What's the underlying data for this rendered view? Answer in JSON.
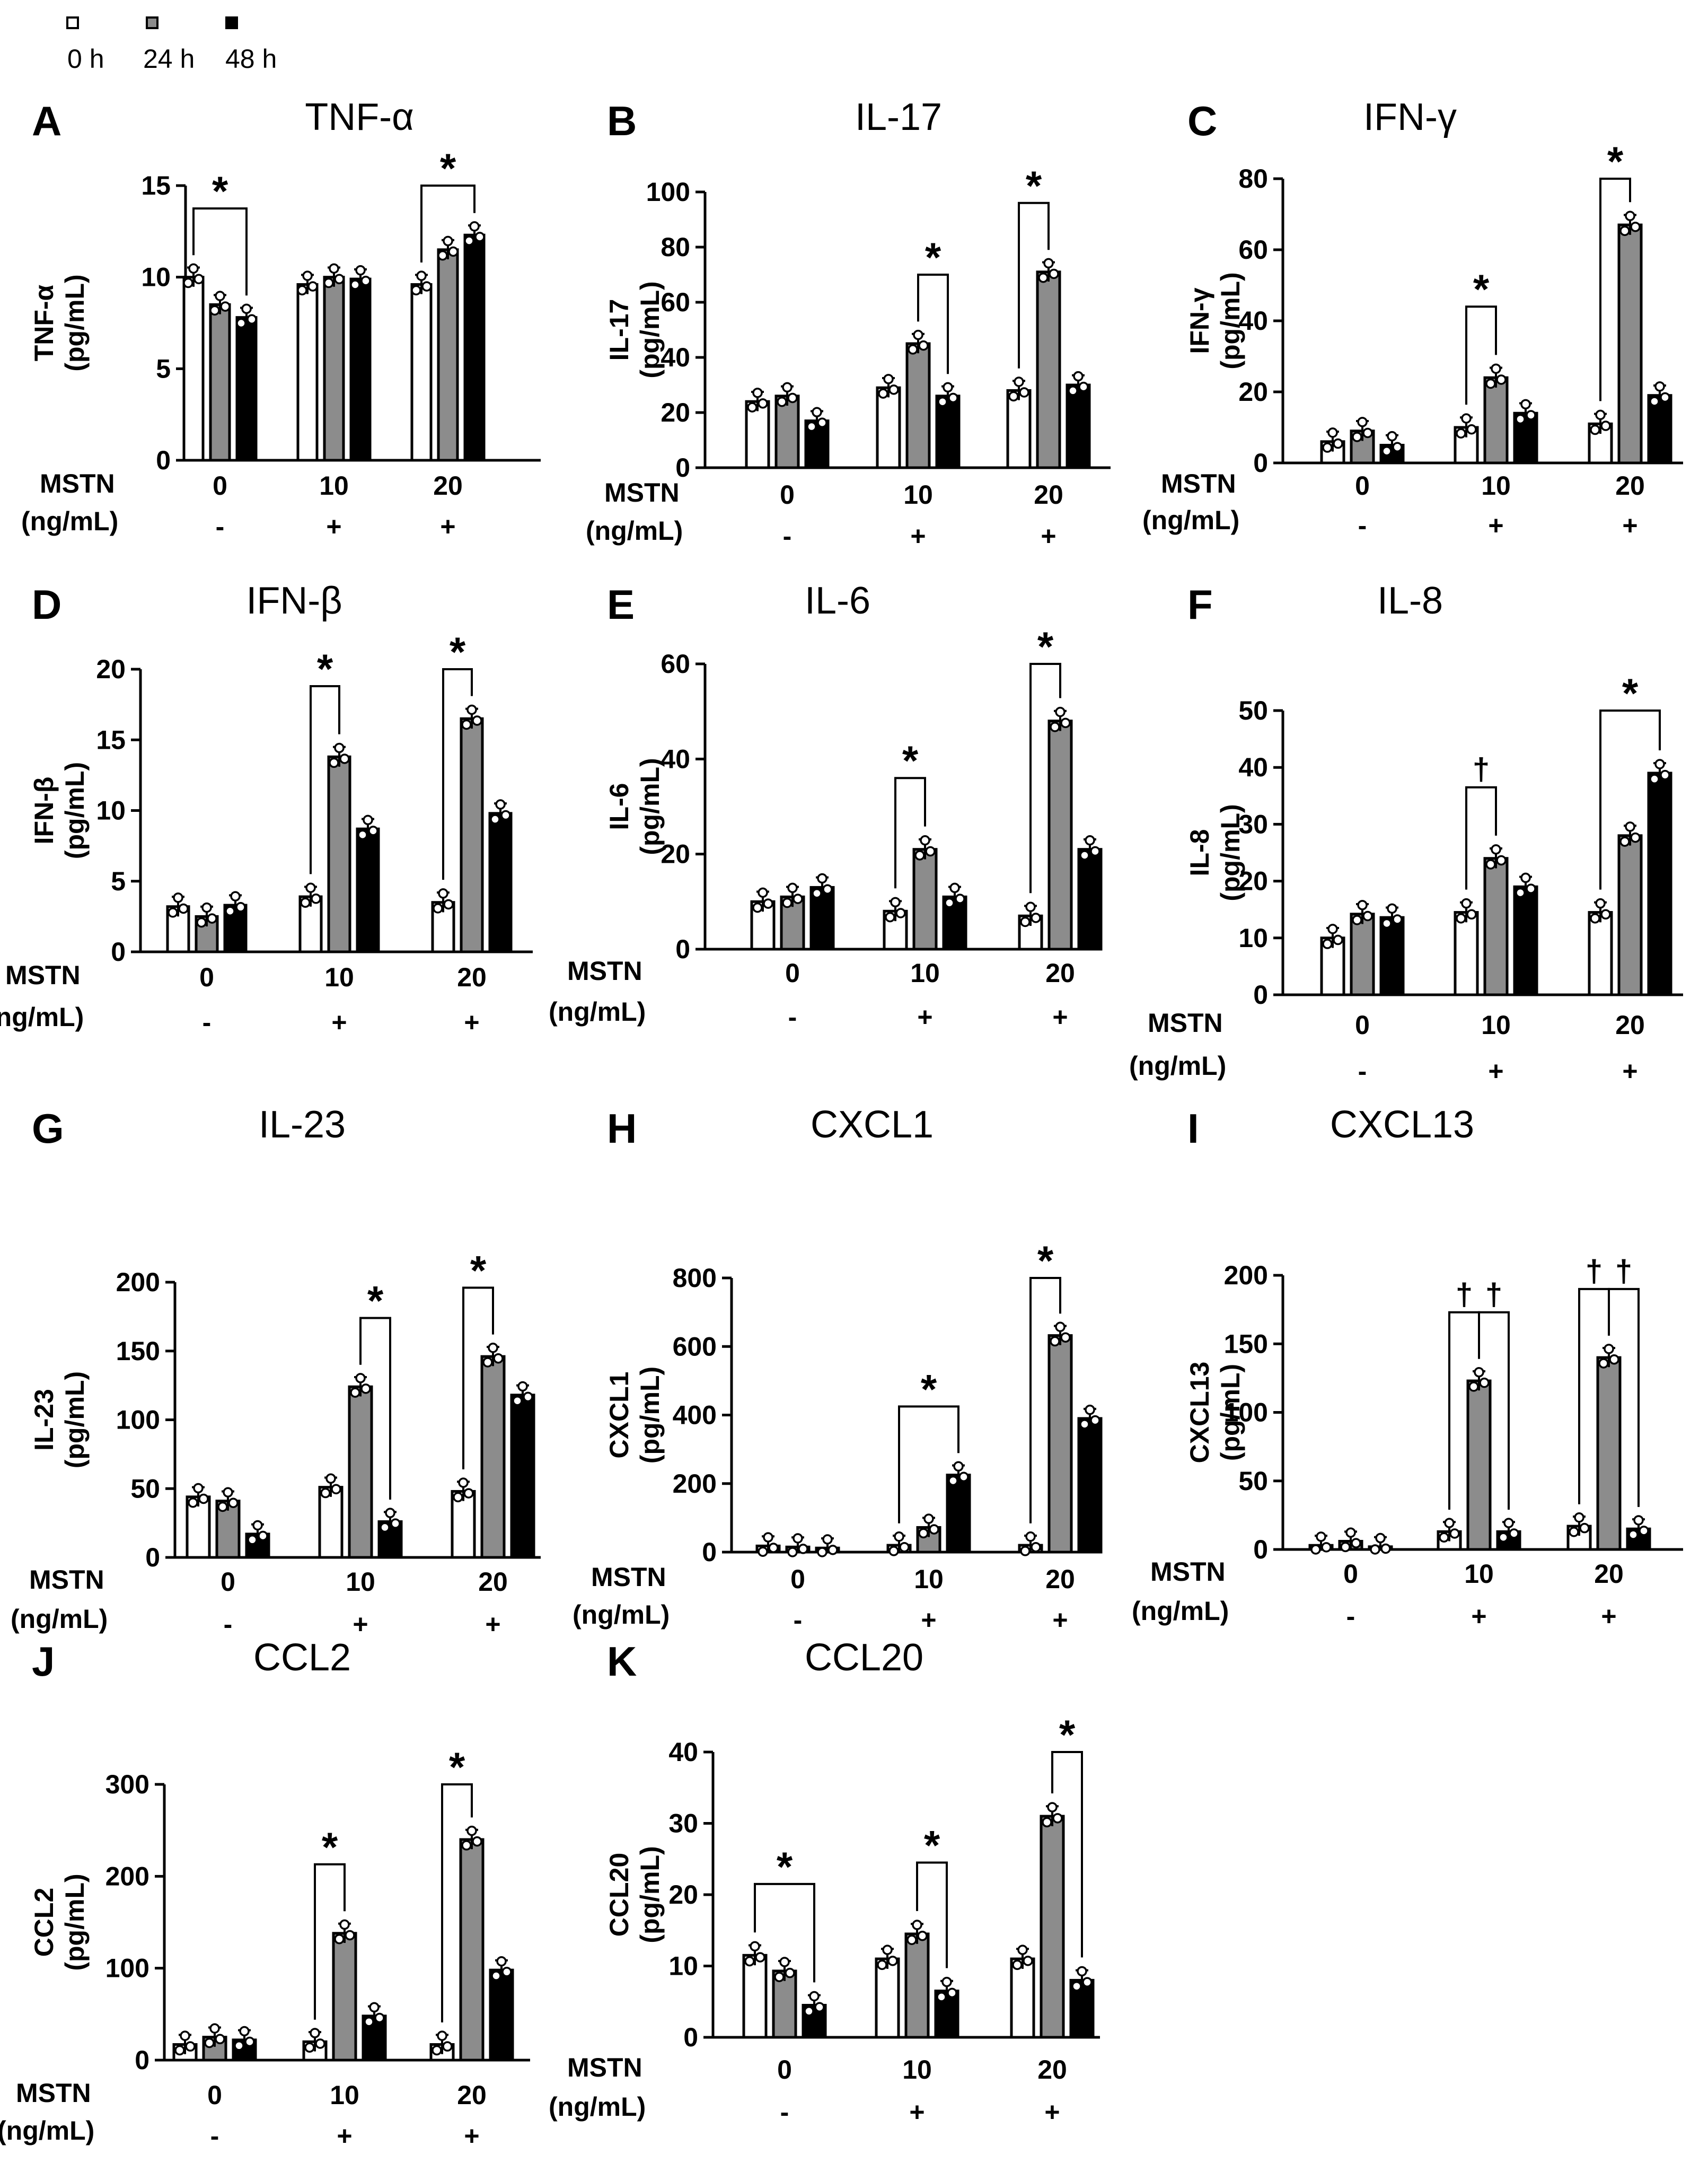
{
  "legend": [
    {
      "label": "0 h",
      "fill": "#ffffff"
    },
    {
      "label": "24 h",
      "fill": "#8c8c8c"
    },
    {
      "label": "48 h",
      "fill": "#000000"
    }
  ],
  "x_title_line1": "MSTN",
  "x_title_line2": "(ng/mL)",
  "groups": [
    "0",
    "10",
    "20"
  ],
  "signs": [
    "-",
    "+",
    "+"
  ],
  "chart_data": [
    {
      "type": "bar",
      "letter": "A",
      "title": "TNF-α",
      "ylabel": "TNF-α",
      "yunit": "(pg/mL)",
      "ylim": [
        0,
        15
      ],
      "yticks": [
        0,
        5,
        10,
        15
      ],
      "categories": [
        "0",
        "10",
        "20"
      ],
      "series": [
        {
          "name": "0 h",
          "values": [
            10.0,
            9.6,
            9.6
          ]
        },
        {
          "name": "24 h",
          "values": [
            8.5,
            10.0,
            11.5
          ]
        },
        {
          "name": "48 h",
          "values": [
            7.8,
            9.9,
            12.3
          ]
        }
      ],
      "annotations": [
        {
          "group": 0,
          "from": "0 h",
          "to": "48 h",
          "text": "*"
        },
        {
          "group": 2,
          "from": "0 h",
          "to": "48 h",
          "text": "*"
        }
      ]
    },
    {
      "type": "bar",
      "letter": "B",
      "title": "IL-17",
      "ylabel": "IL-17",
      "yunit": "(pg/mL)",
      "ylim": [
        0,
        100
      ],
      "yticks": [
        0,
        20,
        40,
        60,
        80,
        100
      ],
      "categories": [
        "0",
        "10",
        "20"
      ],
      "series": [
        {
          "name": "0 h",
          "values": [
            24,
            29,
            28
          ]
        },
        {
          "name": "24 h",
          "values": [
            26,
            45,
            71
          ]
        },
        {
          "name": "48 h",
          "values": [
            17,
            26,
            30
          ]
        }
      ],
      "annotations": [
        {
          "group": 1,
          "from": "24 h",
          "to": "48 h",
          "text": "*"
        },
        {
          "group": 2,
          "from": "0 h",
          "to": "24 h",
          "text": "*"
        }
      ]
    },
    {
      "type": "bar",
      "letter": "C",
      "title": "IFN-γ",
      "ylabel": "IFN-γ",
      "yunit": "(pg/mL)",
      "ylim": [
        0,
        80
      ],
      "yticks": [
        0,
        20,
        40,
        60,
        80
      ],
      "categories": [
        "0",
        "10",
        "20"
      ],
      "series": [
        {
          "name": "0 h",
          "values": [
            6,
            10,
            11
          ]
        },
        {
          "name": "24 h",
          "values": [
            9,
            24,
            67
          ]
        },
        {
          "name": "48 h",
          "values": [
            5,
            14,
            19
          ]
        }
      ],
      "annotations": [
        {
          "group": 1,
          "from": "0 h",
          "to": "24 h",
          "text": "*"
        },
        {
          "group": 2,
          "from": "0 h",
          "to": "24 h",
          "text": "*"
        }
      ]
    },
    {
      "type": "bar",
      "letter": "D",
      "title": "IFN-β",
      "ylabel": "IFN-β",
      "yunit": "(pg/mL)",
      "ylim": [
        0,
        20
      ],
      "yticks": [
        0,
        5,
        10,
        15,
        20
      ],
      "categories": [
        "0",
        "10",
        "20"
      ],
      "series": [
        {
          "name": "0 h",
          "values": [
            3.2,
            3.9,
            3.5
          ]
        },
        {
          "name": "24 h",
          "values": [
            2.5,
            13.8,
            16.5
          ]
        },
        {
          "name": "48 h",
          "values": [
            3.3,
            8.7,
            9.8
          ]
        }
      ],
      "annotations": [
        {
          "group": 1,
          "from": "0 h",
          "to": "24 h",
          "text": "*"
        },
        {
          "group": 2,
          "from": "0 h",
          "to": "24 h",
          "text": "*"
        }
      ]
    },
    {
      "type": "bar",
      "letter": "E",
      "title": "IL-6",
      "ylabel": "IL-6",
      "yunit": "(pg/mL)",
      "ylim": [
        0,
        60
      ],
      "yticks": [
        0,
        20,
        40,
        60
      ],
      "categories": [
        "0",
        "10",
        "20"
      ],
      "series": [
        {
          "name": "0 h",
          "values": [
            10,
            8,
            7
          ]
        },
        {
          "name": "24 h",
          "values": [
            11,
            21,
            48
          ]
        },
        {
          "name": "48 h",
          "values": [
            13,
            11,
            21
          ]
        }
      ],
      "annotations": [
        {
          "group": 1,
          "from": "0 h",
          "to": "24 h",
          "text": "*"
        },
        {
          "group": 2,
          "from": "0 h",
          "to": "24 h",
          "text": "*"
        }
      ]
    },
    {
      "type": "bar",
      "letter": "F",
      "title": "IL-8",
      "ylabel": "IL-8",
      "yunit": "(pg/mL)",
      "ylim": [
        0,
        50
      ],
      "yticks": [
        0,
        10,
        20,
        30,
        40,
        50
      ],
      "categories": [
        "0",
        "10",
        "20"
      ],
      "series": [
        {
          "name": "0 h",
          "values": [
            10,
            14.5,
            14.5
          ]
        },
        {
          "name": "24 h",
          "values": [
            14.2,
            24,
            28
          ]
        },
        {
          "name": "48 h",
          "values": [
            13.6,
            19,
            39
          ]
        }
      ],
      "annotations": [
        {
          "group": 1,
          "from": "0 h",
          "to": "24 h",
          "text": "†"
        },
        {
          "group": 2,
          "from": "0 h",
          "to": "48 h",
          "text": "*"
        }
      ]
    },
    {
      "type": "bar",
      "letter": "G",
      "title": "IL-23",
      "ylabel": "IL-23",
      "yunit": "(pg/mL)",
      "ylim": [
        0,
        200
      ],
      "yticks": [
        0,
        50,
        100,
        150,
        200
      ],
      "categories": [
        "0",
        "10",
        "20"
      ],
      "series": [
        {
          "name": "0 h",
          "values": [
            44,
            51,
            48
          ]
        },
        {
          "name": "24 h",
          "values": [
            41,
            124,
            146
          ]
        },
        {
          "name": "48 h",
          "values": [
            17,
            26,
            118
          ]
        }
      ],
      "annotations": [
        {
          "group": 1,
          "from": "24 h",
          "to": "48 h",
          "text": "*"
        },
        {
          "group": 2,
          "from": "0 h",
          "to": "24 h",
          "text": "*"
        }
      ]
    },
    {
      "type": "bar",
      "letter": "H",
      "title": "CXCL1",
      "ylabel": "CXCL1",
      "yunit": "(pg/mL)",
      "ylim": [
        0,
        800
      ],
      "yticks": [
        0,
        200,
        400,
        600,
        800
      ],
      "categories": [
        "0",
        "10",
        "20"
      ],
      "series": [
        {
          "name": "0 h",
          "values": [
            18,
            20,
            20
          ]
        },
        {
          "name": "24 h",
          "values": [
            15,
            72,
            632
          ]
        },
        {
          "name": "48 h",
          "values": [
            12,
            225,
            390
          ]
        }
      ],
      "annotations": [
        {
          "group": 1,
          "from": "0 h",
          "to": "48 h",
          "text": "*"
        },
        {
          "group": 2,
          "from": "0 h",
          "to": "24 h",
          "text": "*"
        }
      ]
    },
    {
      "type": "bar",
      "letter": "I",
      "title": "CXCL13",
      "ylabel": "CXCL13",
      "yunit": "(pg/mL)",
      "ylim": [
        0,
        200
      ],
      "yticks": [
        0,
        50,
        100,
        150,
        200
      ],
      "categories": [
        "0",
        "10",
        "20"
      ],
      "series": [
        {
          "name": "0 h",
          "values": [
            3,
            13,
            17
          ]
        },
        {
          "name": "24 h",
          "values": [
            6,
            123,
            140
          ]
        },
        {
          "name": "48 h",
          "values": [
            2,
            13,
            15
          ]
        }
      ],
      "annotations": [
        {
          "group": 1,
          "from": "0 h",
          "to": "24 h",
          "text": "†"
        },
        {
          "group": 1,
          "from": "24 h",
          "to": "48 h",
          "text": "†"
        },
        {
          "group": 2,
          "from": "0 h",
          "to": "24 h",
          "text": "†"
        },
        {
          "group": 2,
          "from": "24 h",
          "to": "48 h",
          "text": "†"
        }
      ]
    },
    {
      "type": "bar",
      "letter": "J",
      "title": "CCL2",
      "ylabel": "CCL2",
      "yunit": "(pg/mL)",
      "ylim": [
        0,
        300
      ],
      "yticks": [
        0,
        100,
        200,
        300
      ],
      "categories": [
        "0",
        "10",
        "20"
      ],
      "series": [
        {
          "name": "0 h",
          "values": [
            17,
            20,
            17
          ]
        },
        {
          "name": "24 h",
          "values": [
            25,
            138,
            240
          ]
        },
        {
          "name": "48 h",
          "values": [
            22,
            48,
            98
          ]
        }
      ],
      "annotations": [
        {
          "group": 1,
          "from": "0 h",
          "to": "24 h",
          "text": "*"
        },
        {
          "group": 2,
          "from": "0 h",
          "to": "24 h",
          "text": "*"
        }
      ]
    },
    {
      "type": "bar",
      "letter": "K",
      "title": "CCL20",
      "ylabel": "CCL20",
      "yunit": "(pg/mL)",
      "ylim": [
        0,
        40
      ],
      "yticks": [
        0,
        10,
        20,
        30,
        40
      ],
      "categories": [
        "0",
        "10",
        "20"
      ],
      "series": [
        {
          "name": "0 h",
          "values": [
            11.5,
            11,
            11
          ]
        },
        {
          "name": "24 h",
          "values": [
            9.3,
            14.5,
            31
          ]
        },
        {
          "name": "48 h",
          "values": [
            4.5,
            6.5,
            8
          ]
        }
      ],
      "annotations": [
        {
          "group": 0,
          "from": "0 h",
          "to": "48 h",
          "text": "*"
        },
        {
          "group": 1,
          "from": "24 h",
          "to": "48 h",
          "text": "*"
        },
        {
          "group": 2,
          "from": "24 h",
          "to": "48 h",
          "text": "*"
        }
      ]
    }
  ]
}
